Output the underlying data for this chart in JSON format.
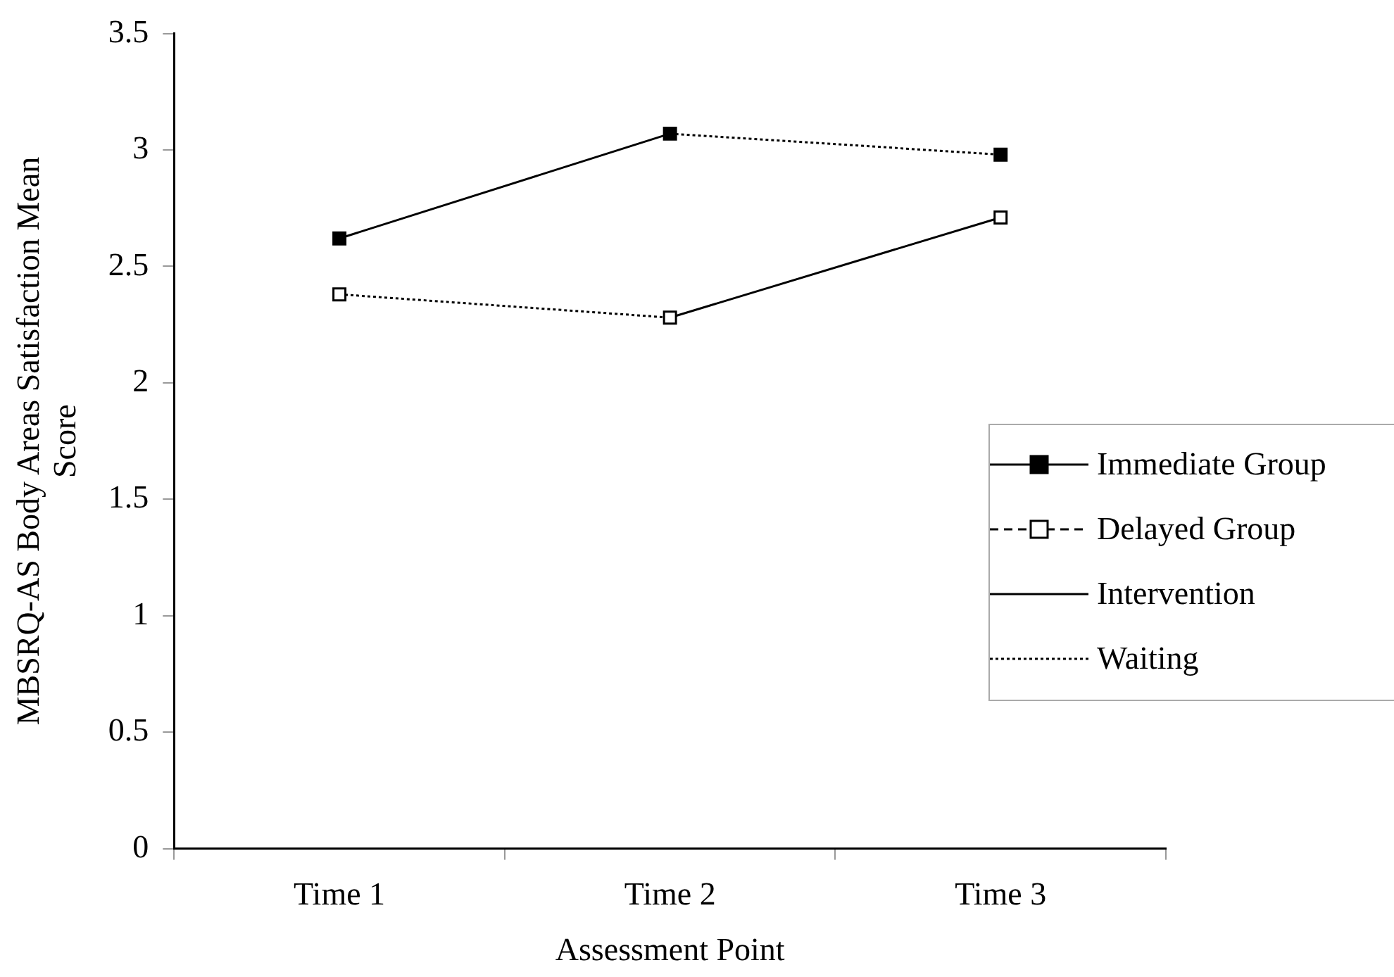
{
  "chart_data": {
    "type": "line",
    "xlabel": "Assessment Point",
    "ylabel": "MBSRQ-AS Body Areas Satisfaction Mean Score",
    "categories": [
      "Time 1",
      "Time 2",
      "Time 3"
    ],
    "series": [
      {
        "name": "Immediate Group",
        "type": "scatter",
        "color": "#000000",
        "marker": "square",
        "line_style": "solid",
        "values": [
          2.62,
          3.07,
          2.98
        ]
      },
      {
        "name": "Delayed Group",
        "type": "scatter",
        "color": "#ffffff",
        "marker": "square",
        "line_style": "dashed",
        "values": [
          2.38,
          2.28,
          2.71
        ]
      },
      {
        "name": "Intervention",
        "color": "#000000",
        "line_style": "solid",
        "x": [
          "Time 1",
          "Time 2",
          "Time 2",
          "Time 2",
          "Time 3"
        ],
        "values": [
          2.62,
          3.07,
          null,
          2.28,
          2.71
        ]
      },
      {
        "name": "Waiting",
        "color": "#000000",
        "line_style": "dotted",
        "x": [
          "Time 1",
          "Time 2",
          "Time 2",
          "Time 2",
          "Time 3"
        ],
        "values": [
          2.38,
          2.28,
          null,
          3.07,
          2.98
        ]
      }
    ],
    "ylim": [
      0,
      3.5
    ],
    "yticks": [
      0,
      0.5,
      1,
      1.5,
      2,
      2.5,
      3,
      3.5
    ],
    "grid": false,
    "legend": "right"
  }
}
